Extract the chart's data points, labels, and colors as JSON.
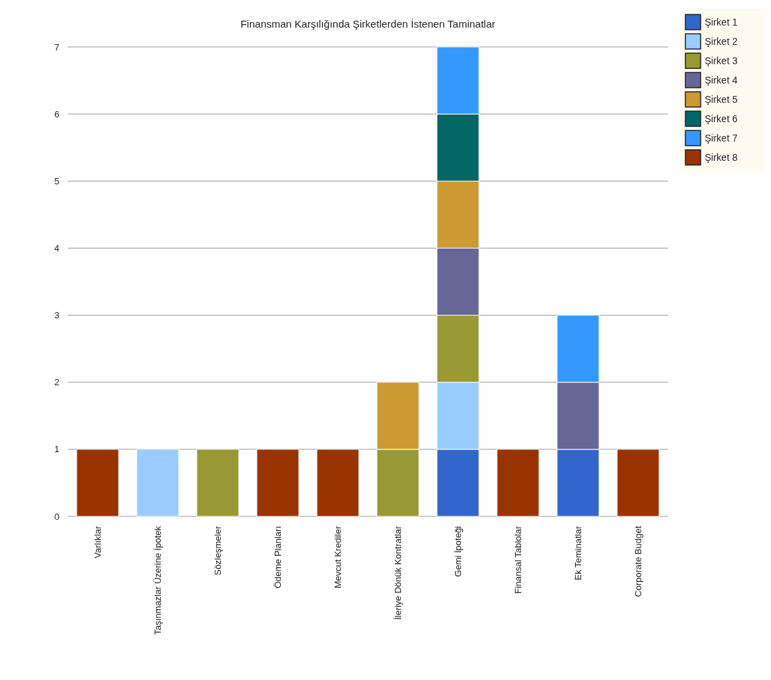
{
  "chart_data": {
    "type": "bar",
    "title": "Finansman Karşılığında Şirketlerden İstenen Taminatlar",
    "stacked": true,
    "categories": [
      "Varlıklar",
      "Taşınmazlar Üzerine İpotek",
      "Sözleşmeler",
      "Ödeme Planları",
      "Mevcut Krediler",
      "İleriye Dönük Kontratlar",
      "Gemi İpoteği",
      "Finansal Tablolar",
      "Ek Teminatlar",
      "Corporate Budget"
    ],
    "series": [
      {
        "name": "Şirket 1",
        "color": "#3366cc",
        "values": [
          null,
          null,
          null,
          null,
          null,
          null,
          1,
          null,
          1,
          null
        ]
      },
      {
        "name": "Şirket 2",
        "color": "#99ccff",
        "values": [
          null,
          1,
          null,
          null,
          null,
          null,
          1,
          null,
          null,
          null
        ]
      },
      {
        "name": "Şirket 3",
        "color": "#999933",
        "values": [
          null,
          null,
          1,
          null,
          null,
          1,
          1,
          null,
          null,
          null
        ]
      },
      {
        "name": "Şirket 4",
        "color": "#666699",
        "values": [
          null,
          null,
          null,
          null,
          null,
          null,
          1,
          null,
          1,
          null
        ]
      },
      {
        "name": "Şirket 5",
        "color": "#cc9933",
        "values": [
          null,
          null,
          null,
          null,
          null,
          1,
          1,
          null,
          null,
          null
        ]
      },
      {
        "name": "Şirket 6",
        "color": "#006666",
        "values": [
          null,
          null,
          null,
          null,
          null,
          null,
          1,
          null,
          null,
          null
        ]
      },
      {
        "name": "Şirket 7",
        "color": "#3399ff",
        "values": [
          null,
          null,
          null,
          null,
          null,
          null,
          1,
          null,
          1,
          null
        ]
      },
      {
        "name": "Şirket 8",
        "color": "#993300",
        "values": [
          1,
          null,
          null,
          1,
          1,
          null,
          null,
          1,
          null,
          1
        ]
      }
    ],
    "ylim": [
      0,
      7
    ],
    "yticks": [
      0,
      1,
      2,
      3,
      4,
      5,
      6,
      7
    ],
    "grid": "y",
    "legend": "top right"
  }
}
